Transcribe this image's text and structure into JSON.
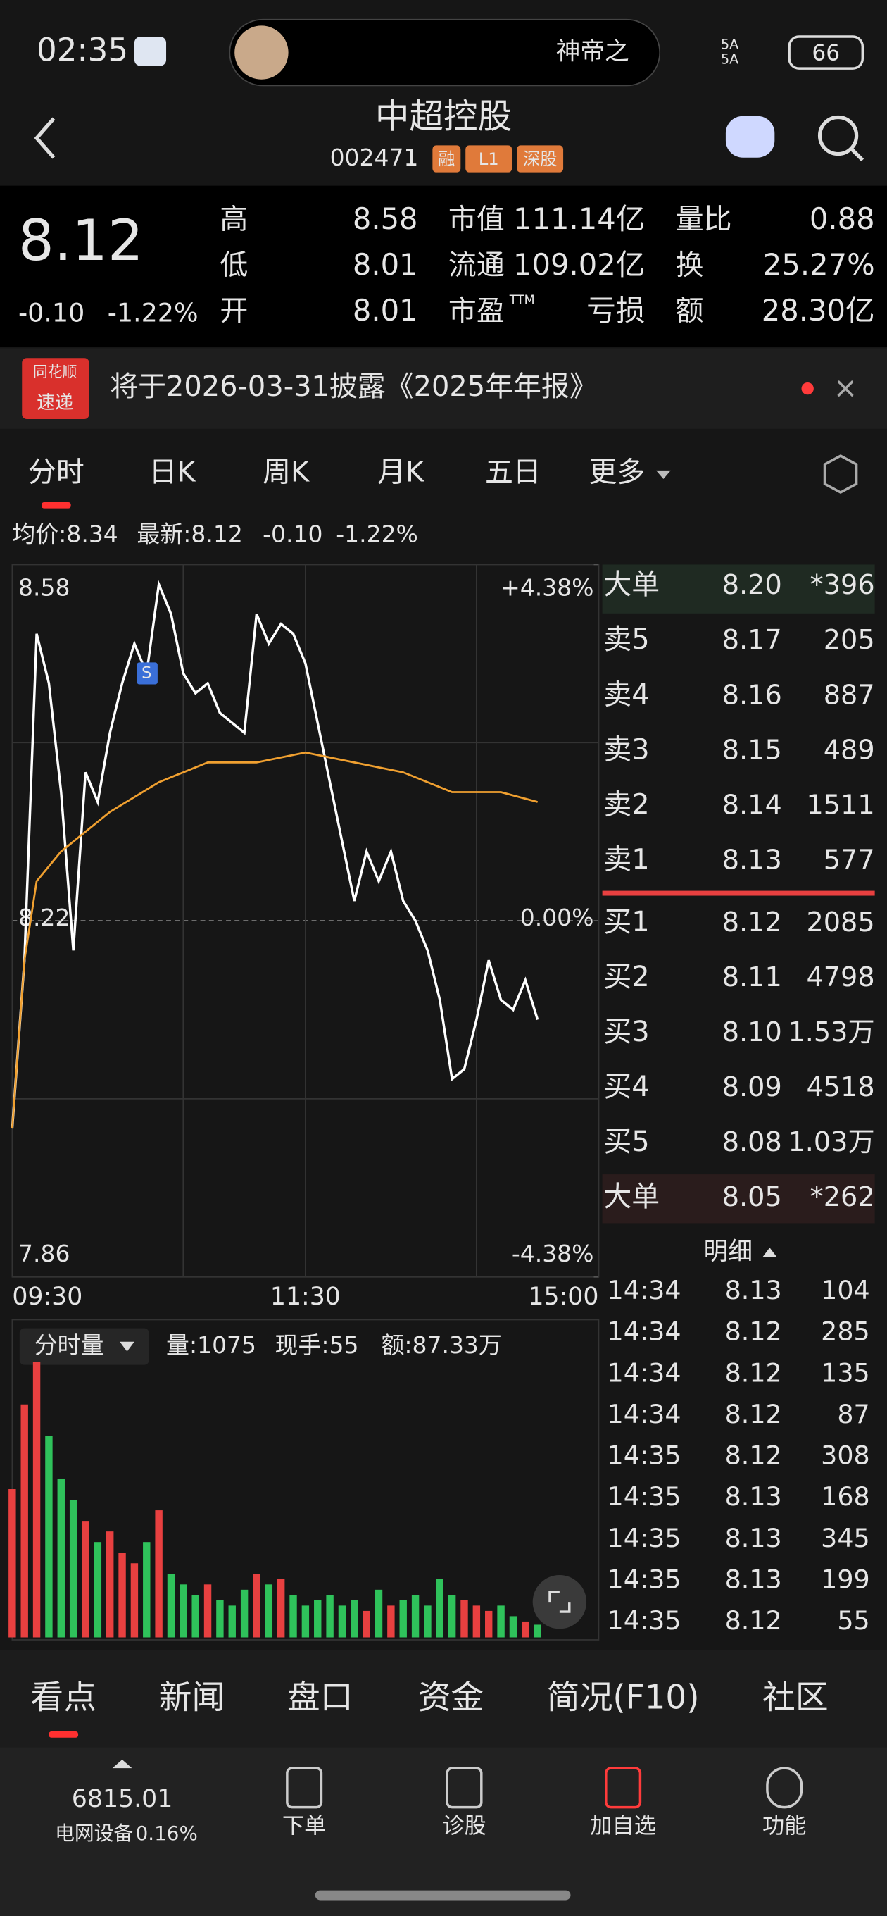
{
  "status_bar": {
    "time": "02:35",
    "pill_text": "神帝之",
    "signal": "5A",
    "battery": "66"
  },
  "header": {
    "title": "中超控股",
    "code": "002471",
    "badges": [
      "融",
      "L1",
      "深股"
    ]
  },
  "quote": {
    "price": 8.12,
    "change": "-0.10",
    "change_pct": "-1.22%",
    "fields": [
      [
        "高",
        "8.58",
        "#ff4d4d"
      ],
      [
        "低",
        "8.01",
        "#2fc25b"
      ],
      [
        "开",
        "8.01",
        "#2fc25b"
      ],
      [
        "市值",
        "111.14亿",
        "#ffffff"
      ],
      [
        "流通",
        "109.02亿",
        "#ffffff"
      ],
      [
        "市盈",
        "亏损",
        "#ffffff"
      ],
      [
        "量比",
        "0.88",
        "#2fc25b"
      ],
      [
        "换",
        "25.27%",
        "#ffffff"
      ],
      [
        "额",
        "28.30亿",
        "#ffffff"
      ]
    ],
    "ttm": "TTM"
  },
  "notice": {
    "badge": [
      "同花顺",
      "速递"
    ],
    "text": "将于2026-03-31披露《2025年年报》"
  },
  "tabs": [
    "分时",
    "日K",
    "周K",
    "月K",
    "五日",
    "更多"
  ],
  "legend": {
    "avg": "均价:8.34",
    "latest": "最新:8.12",
    "change": "-0.10",
    "change_pct": "-1.22%"
  },
  "intraday": {
    "type": "line",
    "xlim": [
      0,
      240
    ],
    "ylim": [
      7.86,
      8.58
    ],
    "yticks": [
      8.58,
      8.22,
      7.86
    ],
    "y2lim": [
      -4.38,
      4.38
    ],
    "y2ticks": [
      {
        "value": 4.38,
        "label": "+4.38%"
      },
      {
        "value": 0,
        "label": "0.00%"
      },
      {
        "value": -4.38,
        "label": "-4.38%"
      }
    ],
    "xticks": [
      {
        "value": 0,
        "label": "09:30"
      },
      {
        "value": 120,
        "label": "11:30"
      },
      {
        "value": 240,
        "label": "15:00"
      }
    ],
    "series": [
      {
        "color": "#ffffff",
        "x": [
          0,
          5,
          10,
          15,
          20,
          25,
          30,
          35,
          40,
          45,
          50,
          55,
          60,
          65,
          70,
          75,
          80,
          85,
          90,
          95,
          100,
          105,
          110,
          115,
          120,
          125,
          130,
          135,
          140,
          145,
          150,
          155,
          160,
          165,
          170,
          175,
          180,
          185,
          190,
          195,
          200,
          205,
          210,
          215
        ],
        "values": [
          8.01,
          8.18,
          8.51,
          8.46,
          8.35,
          8.19,
          8.37,
          8.34,
          8.41,
          8.46,
          8.5,
          8.47,
          8.56,
          8.53,
          8.47,
          8.45,
          8.46,
          8.43,
          8.42,
          8.41,
          8.53,
          8.5,
          8.52,
          8.51,
          8.48,
          8.42,
          8.36,
          8.3,
          8.24,
          8.29,
          8.26,
          8.29,
          8.24,
          8.22,
          8.19,
          8.14,
          8.06,
          8.07,
          8.12,
          8.18,
          8.14,
          8.13,
          8.16,
          8.12
        ]
      },
      {
        "color": "#f0a030",
        "x": [
          0,
          5,
          10,
          20,
          30,
          40,
          60,
          80,
          100,
          120,
          140,
          160,
          180,
          200,
          215
        ],
        "values": [
          8.01,
          8.18,
          8.26,
          8.29,
          8.31,
          8.33,
          8.36,
          8.38,
          8.38,
          8.39,
          8.38,
          8.37,
          8.35,
          8.35,
          8.34
        ]
      }
    ],
    "signal": {
      "label": "S",
      "x": 55,
      "value": 8.47
    },
    "volume": {
      "title": "分时量",
      "stats": [
        "量:1075",
        "现手:55",
        "额:87.33万"
      ],
      "ylim": [
        0,
        3000
      ],
      "x": [
        0,
        5,
        10,
        15,
        20,
        25,
        30,
        35,
        40,
        45,
        50,
        55,
        60,
        65,
        70,
        75,
        80,
        85,
        90,
        95,
        100,
        105,
        110,
        115,
        120,
        125,
        130,
        135,
        140,
        145,
        150,
        155,
        160,
        165,
        170,
        175,
        180,
        185,
        190,
        195,
        200,
        205,
        210,
        215
      ],
      "values": [
        1400,
        2200,
        2600,
        1900,
        1500,
        1300,
        1100,
        900,
        1000,
        800,
        700,
        900,
        1200,
        600,
        500,
        400,
        500,
        350,
        300,
        450,
        600,
        500,
        550,
        400,
        300,
        350,
        400,
        300,
        350,
        250,
        450,
        300,
        350,
        400,
        300,
        550,
        400,
        350,
        300,
        250,
        300,
        200,
        150,
        120
      ],
      "up_color": "#e84040",
      "down_color": "#2fc25b"
    }
  },
  "order_book": {
    "big_sell": [
      "大单",
      "8.20",
      "*396"
    ],
    "asks": [
      [
        "卖5",
        "8.17",
        "205"
      ],
      [
        "卖4",
        "8.16",
        "887"
      ],
      [
        "卖3",
        "8.15",
        "489"
      ],
      [
        "卖2",
        "8.14",
        "1511"
      ],
      [
        "卖1",
        "8.13",
        "577"
      ]
    ],
    "bids": [
      [
        "买1",
        "8.12",
        "2085"
      ],
      [
        "买2",
        "8.11",
        "4798"
      ],
      [
        "买3",
        "8.10",
        "1.53万"
      ],
      [
        "买4",
        "8.09",
        "4518"
      ],
      [
        "买5",
        "8.08",
        "1.03万"
      ]
    ],
    "big_buy": [
      "大单",
      "8.05",
      "*262"
    ],
    "detail": "明细"
  },
  "trades": [
    [
      "14:34",
      "8.13",
      "104",
      "#ff4d4d"
    ],
    [
      "14:34",
      "8.12",
      "285",
      "#2fc25b"
    ],
    [
      "14:34",
      "8.12",
      "135",
      "#2fc25b"
    ],
    [
      "14:34",
      "8.12",
      "87",
      "#2fc25b"
    ],
    [
      "14:35",
      "8.12",
      "308",
      "#2fc25b"
    ],
    [
      "14:35",
      "8.13",
      "168",
      "#ff4d4d"
    ],
    [
      "14:35",
      "8.13",
      "345",
      "#ff4d4d"
    ],
    [
      "14:35",
      "8.13",
      "199",
      "#ff4d4d"
    ],
    [
      "14:35",
      "8.12",
      "55",
      "#2fc25b"
    ]
  ],
  "bottom_tabs": [
    "看点",
    "新闻",
    "盘口",
    "资金",
    "简况(F10)",
    "社区"
  ],
  "nav": {
    "index_value": "6815.01",
    "index_name": "电网设备",
    "index_change": "0.16%",
    "items": [
      "下单",
      "诊股",
      "加自选",
      "功能"
    ]
  }
}
